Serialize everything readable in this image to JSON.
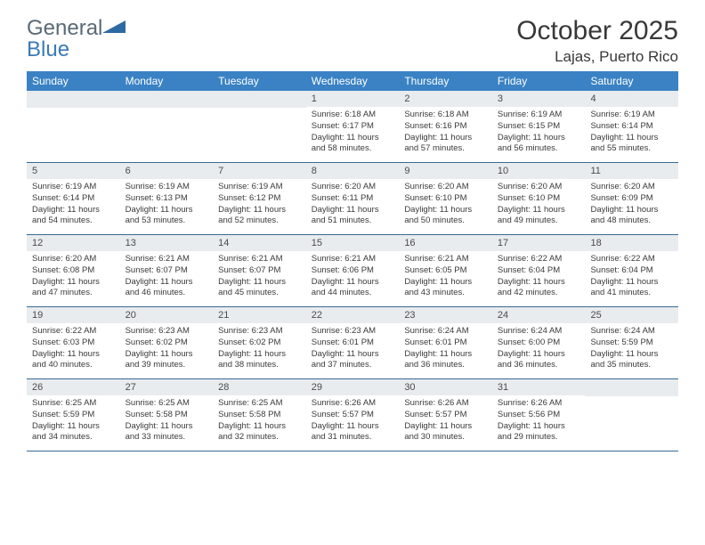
{
  "logo": {
    "text1": "General",
    "text2": "Blue",
    "triangle_color": "#2d6aa3",
    "text1_color": "#5a6a75",
    "text2_color": "#3a7ab8"
  },
  "title": "October 2025",
  "location": "Lajas, Puerto Rico",
  "header_bg": "#3a82c4",
  "daynum_bg": "#e8ecef",
  "border_color": "#3a6a8f",
  "day_names": [
    "Sunday",
    "Monday",
    "Tuesday",
    "Wednesday",
    "Thursday",
    "Friday",
    "Saturday"
  ],
  "weeks": [
    [
      null,
      null,
      null,
      {
        "n": "1",
        "sr": "6:18 AM",
        "ss": "6:17 PM",
        "dl": "11 hours and 58 minutes."
      },
      {
        "n": "2",
        "sr": "6:18 AM",
        "ss": "6:16 PM",
        "dl": "11 hours and 57 minutes."
      },
      {
        "n": "3",
        "sr": "6:19 AM",
        "ss": "6:15 PM",
        "dl": "11 hours and 56 minutes."
      },
      {
        "n": "4",
        "sr": "6:19 AM",
        "ss": "6:14 PM",
        "dl": "11 hours and 55 minutes."
      }
    ],
    [
      {
        "n": "5",
        "sr": "6:19 AM",
        "ss": "6:14 PM",
        "dl": "11 hours and 54 minutes."
      },
      {
        "n": "6",
        "sr": "6:19 AM",
        "ss": "6:13 PM",
        "dl": "11 hours and 53 minutes."
      },
      {
        "n": "7",
        "sr": "6:19 AM",
        "ss": "6:12 PM",
        "dl": "11 hours and 52 minutes."
      },
      {
        "n": "8",
        "sr": "6:20 AM",
        "ss": "6:11 PM",
        "dl": "11 hours and 51 minutes."
      },
      {
        "n": "9",
        "sr": "6:20 AM",
        "ss": "6:10 PM",
        "dl": "11 hours and 50 minutes."
      },
      {
        "n": "10",
        "sr": "6:20 AM",
        "ss": "6:10 PM",
        "dl": "11 hours and 49 minutes."
      },
      {
        "n": "11",
        "sr": "6:20 AM",
        "ss": "6:09 PM",
        "dl": "11 hours and 48 minutes."
      }
    ],
    [
      {
        "n": "12",
        "sr": "6:20 AM",
        "ss": "6:08 PM",
        "dl": "11 hours and 47 minutes."
      },
      {
        "n": "13",
        "sr": "6:21 AM",
        "ss": "6:07 PM",
        "dl": "11 hours and 46 minutes."
      },
      {
        "n": "14",
        "sr": "6:21 AM",
        "ss": "6:07 PM",
        "dl": "11 hours and 45 minutes."
      },
      {
        "n": "15",
        "sr": "6:21 AM",
        "ss": "6:06 PM",
        "dl": "11 hours and 44 minutes."
      },
      {
        "n": "16",
        "sr": "6:21 AM",
        "ss": "6:05 PM",
        "dl": "11 hours and 43 minutes."
      },
      {
        "n": "17",
        "sr": "6:22 AM",
        "ss": "6:04 PM",
        "dl": "11 hours and 42 minutes."
      },
      {
        "n": "18",
        "sr": "6:22 AM",
        "ss": "6:04 PM",
        "dl": "11 hours and 41 minutes."
      }
    ],
    [
      {
        "n": "19",
        "sr": "6:22 AM",
        "ss": "6:03 PM",
        "dl": "11 hours and 40 minutes."
      },
      {
        "n": "20",
        "sr": "6:23 AM",
        "ss": "6:02 PM",
        "dl": "11 hours and 39 minutes."
      },
      {
        "n": "21",
        "sr": "6:23 AM",
        "ss": "6:02 PM",
        "dl": "11 hours and 38 minutes."
      },
      {
        "n": "22",
        "sr": "6:23 AM",
        "ss": "6:01 PM",
        "dl": "11 hours and 37 minutes."
      },
      {
        "n": "23",
        "sr": "6:24 AM",
        "ss": "6:01 PM",
        "dl": "11 hours and 36 minutes."
      },
      {
        "n": "24",
        "sr": "6:24 AM",
        "ss": "6:00 PM",
        "dl": "11 hours and 36 minutes."
      },
      {
        "n": "25",
        "sr": "6:24 AM",
        "ss": "5:59 PM",
        "dl": "11 hours and 35 minutes."
      }
    ],
    [
      {
        "n": "26",
        "sr": "6:25 AM",
        "ss": "5:59 PM",
        "dl": "11 hours and 34 minutes."
      },
      {
        "n": "27",
        "sr": "6:25 AM",
        "ss": "5:58 PM",
        "dl": "11 hours and 33 minutes."
      },
      {
        "n": "28",
        "sr": "6:25 AM",
        "ss": "5:58 PM",
        "dl": "11 hours and 32 minutes."
      },
      {
        "n": "29",
        "sr": "6:26 AM",
        "ss": "5:57 PM",
        "dl": "11 hours and 31 minutes."
      },
      {
        "n": "30",
        "sr": "6:26 AM",
        "ss": "5:57 PM",
        "dl": "11 hours and 30 minutes."
      },
      {
        "n": "31",
        "sr": "6:26 AM",
        "ss": "5:56 PM",
        "dl": "11 hours and 29 minutes."
      },
      null
    ]
  ],
  "labels": {
    "sunrise": "Sunrise:",
    "sunset": "Sunset:",
    "daylight": "Daylight:"
  }
}
